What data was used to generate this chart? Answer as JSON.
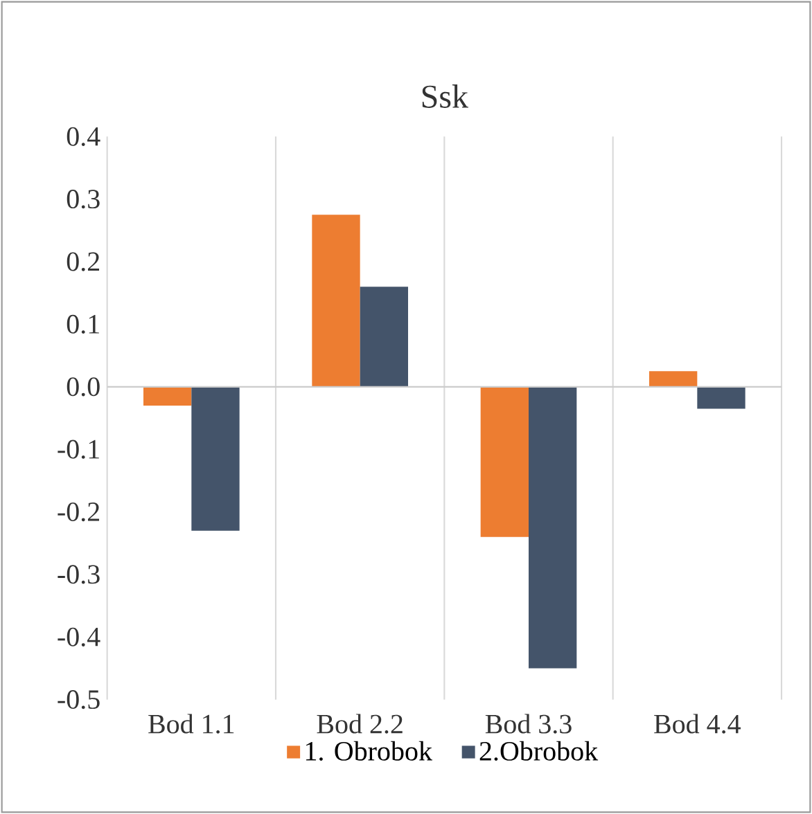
{
  "chart_data": {
    "type": "bar",
    "title": "Ssk",
    "categories": [
      "Bod 1.1",
      "Bod 2.2",
      "Bod 3.3",
      "Bod 4.4"
    ],
    "series": [
      {
        "name": "1. Obrobok",
        "color": "#ed7d31",
        "values": [
          -0.03,
          0.275,
          -0.24,
          0.025
        ]
      },
      {
        "name": "2.Obrobok",
        "color": "#44546a",
        "values": [
          -0.23,
          0.16,
          -0.45,
          -0.035
        ]
      }
    ],
    "ylim": [
      -0.5,
      0.4
    ],
    "yticks": [
      -0.5,
      -0.4,
      -0.3,
      -0.2,
      -0.1,
      {
        "value": 0,
        "label": "0.0"
      },
      0.1,
      0.2,
      0.3,
      0.4
    ],
    "grid": "x",
    "legend": "bottom"
  }
}
